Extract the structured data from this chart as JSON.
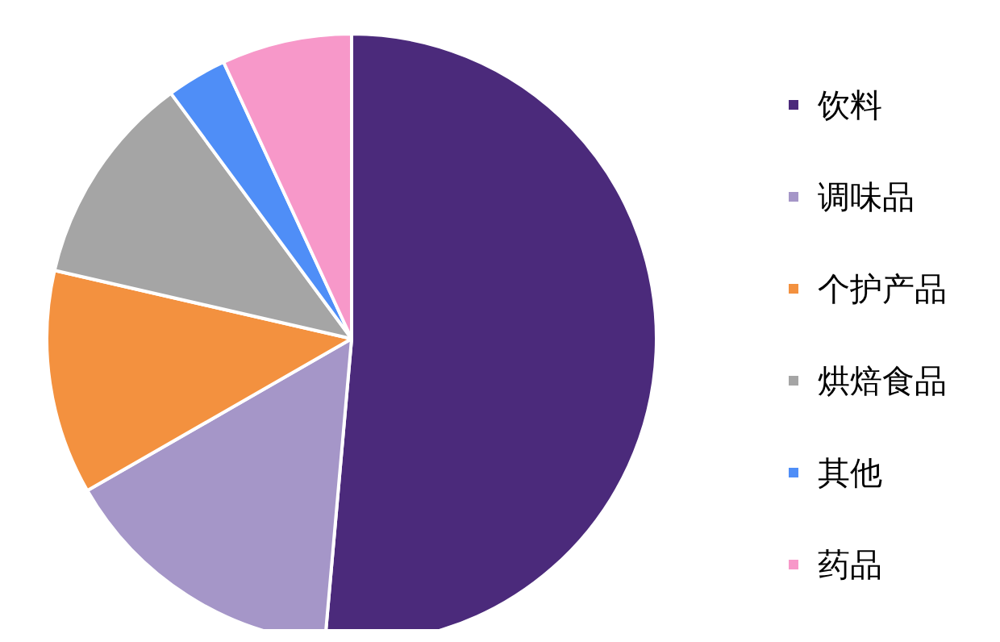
{
  "chart_data": {
    "type": "pie",
    "categories": [
      "饮料",
      "调味品",
      "个护产品",
      "烘焙食品",
      "其他",
      "药品"
    ],
    "values": [
      51.4,
      15.3,
      11.9,
      11.3,
      3.2,
      6.9
    ],
    "colors": [
      "#4b2a7b",
      "#a596c8",
      "#f3913f",
      "#a5a5a5",
      "#4f8ef7",
      "#f798c9"
    ],
    "legend": "right"
  }
}
